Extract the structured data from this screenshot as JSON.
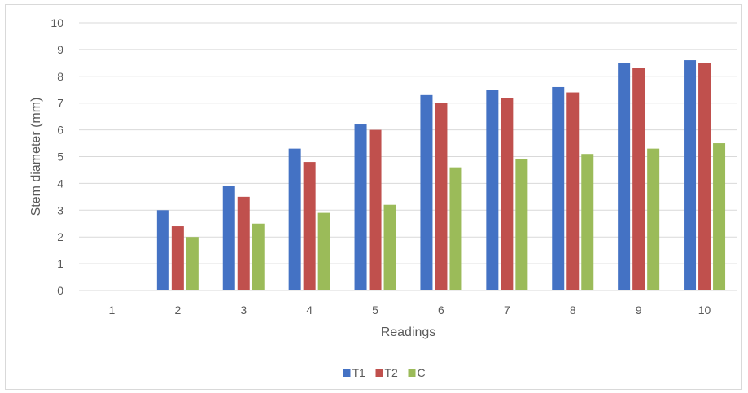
{
  "chart_data": {
    "type": "bar",
    "categories": [
      "1",
      "2",
      "3",
      "4",
      "5",
      "6",
      "7",
      "8",
      "9",
      "10"
    ],
    "series": [
      {
        "name": "T1",
        "color": "#4472c4",
        "values": [
          0,
          3.0,
          3.9,
          5.3,
          6.2,
          7.3,
          7.5,
          7.6,
          8.5,
          8.6
        ]
      },
      {
        "name": "T2",
        "color": "#c0504d",
        "values": [
          0,
          2.4,
          3.5,
          4.8,
          6.0,
          7.0,
          7.2,
          7.4,
          8.3,
          8.5
        ]
      },
      {
        "name": "C",
        "color": "#9bbb59",
        "values": [
          0,
          2.0,
          2.5,
          2.9,
          3.2,
          4.6,
          4.9,
          5.1,
          5.3,
          5.5
        ]
      }
    ],
    "xlabel": "Readings",
    "ylabel": "Stem diameter (mm)",
    "ylim": [
      0,
      10
    ],
    "yticks": [
      "0",
      "1",
      "2",
      "3",
      "4",
      "5",
      "6",
      "7",
      "8",
      "9",
      "10"
    ],
    "grid": "horizontal",
    "legend_position": "bottom"
  }
}
